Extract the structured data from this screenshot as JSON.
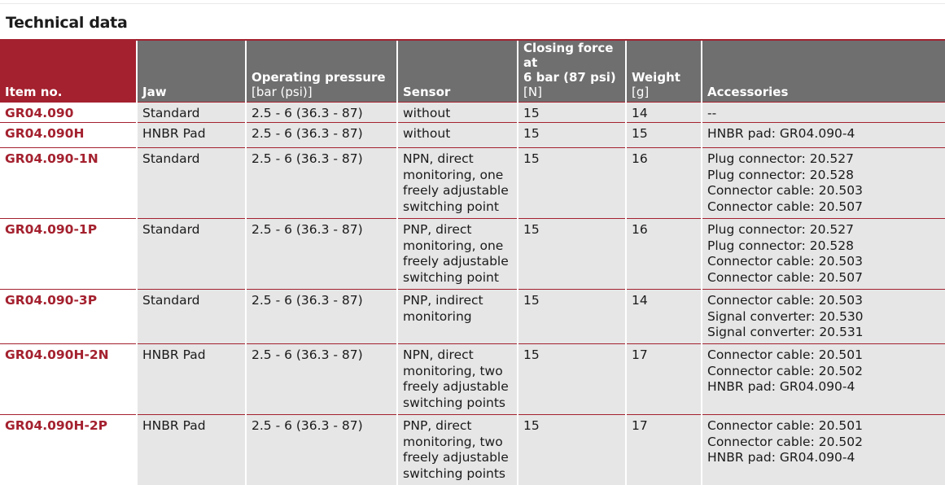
{
  "title": "Technical data",
  "header": [
    {
      "lines": [
        "Item no."
      ],
      "sub": []
    },
    {
      "lines": [
        "Jaw"
      ],
      "sub": []
    },
    {
      "lines": [
        "Operating pressure"
      ],
      "sub": [
        "[bar (psi)]"
      ]
    },
    {
      "lines": [
        "Sensor"
      ],
      "sub": []
    },
    {
      "lines": [
        "Closing force at",
        "6 bar (87 psi)"
      ],
      "sub": [
        "[N]"
      ]
    },
    {
      "lines": [
        "Weight"
      ],
      "sub": [
        "[g]"
      ]
    },
    {
      "lines": [
        "Accessories"
      ],
      "sub": []
    }
  ],
  "rows": [
    {
      "item": "GR04.090",
      "jaw": "Standard",
      "pressure": "2.5 - 6 (36.3 - 87)",
      "sensor": [
        "without"
      ],
      "force": "15",
      "weight": "14",
      "accessories": [
        "--"
      ]
    },
    {
      "item": "GR04.090H",
      "jaw": "HNBR Pad",
      "pressure": "2.5 - 6 (36.3 - 87)",
      "sensor": [
        "without"
      ],
      "force": "15",
      "weight": "15",
      "accessories": [
        "HNBR pad: GR04.090-4"
      ]
    },
    {
      "item": "GR04.090-1N",
      "jaw": "Standard",
      "pressure": "2.5 - 6 (36.3 - 87)",
      "sensor": [
        "NPN, direct",
        "monitoring, one",
        "freely adjustable",
        "switching point"
      ],
      "force": "15",
      "weight": "16",
      "accessories": [
        "Plug connector: 20.527",
        "Plug connector: 20.528",
        "Connector cable: 20.503",
        "Connector cable: 20.507"
      ]
    },
    {
      "item": "GR04.090-1P",
      "jaw": "Standard",
      "pressure": "2.5 - 6 (36.3 - 87)",
      "sensor": [
        "PNP, direct",
        "monitoring, one",
        "freely adjustable",
        "switching point"
      ],
      "force": "15",
      "weight": "16",
      "accessories": [
        "Plug connector: 20.527",
        "Plug connector: 20.528",
        "Connector cable: 20.503",
        "Connector cable: 20.507"
      ]
    },
    {
      "item": "GR04.090-3P",
      "jaw": "Standard",
      "pressure": "2.5 - 6 (36.3 - 87)",
      "sensor": [
        "PNP, indirect",
        "monitoring"
      ],
      "force": "15",
      "weight": "14",
      "accessories": [
        "Connector cable: 20.503",
        "Signal converter: 20.530",
        "Signal converter: 20.531"
      ]
    },
    {
      "item": "GR04.090H-2N",
      "jaw": "HNBR Pad",
      "pressure": "2.5 - 6 (36.3 - 87)",
      "sensor": [
        "NPN, direct",
        "monitoring, two",
        "freely adjustable",
        "switching points"
      ],
      "force": "15",
      "weight": "17",
      "accessories": [
        "Connector cable: 20.501",
        "Connector cable: 20.502",
        "HNBR pad: GR04.090-4"
      ]
    },
    {
      "item": "GR04.090H-2P",
      "jaw": "HNBR Pad",
      "pressure": "2.5 - 6 (36.3 - 87)",
      "sensor": [
        "PNP, direct",
        "monitoring, two",
        "freely adjustable",
        "switching points"
      ],
      "force": "15",
      "weight": "17",
      "accessories": [
        "Connector cable: 20.501",
        "Connector cable: 20.502",
        "HNBR pad: GR04.090-4"
      ]
    }
  ]
}
